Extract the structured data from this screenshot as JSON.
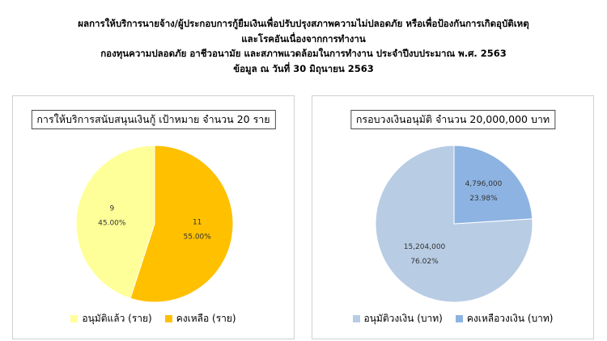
{
  "header": {
    "line1": "ผลการให้บริการนายจ้าง/ผู้ประกอบการกู้ยืมเงินเพื่อปรับปรุงสภาพความไม่ปลอดภัย หรือเพื่อป้องกันการเกิดอุบัติเหตุ",
    "line2": "และโรคอันเนื่องจากการทำงาน",
    "line3": "กองทุนความปลอดภัย อาชีวอนามัย และสภาพแวดล้อมในการทำงาน ประจำปีงบประมาณ พ.ศ. 2563",
    "line4": "ข้อมูล ณ วันที่ 30 มิถุนายน 2563"
  },
  "chart_data": [
    {
      "type": "pie",
      "title": "การให้บริการสนับสนุนเงินกู้ เป้าหมาย จำนวน 20 ราย",
      "slices": [
        {
          "name": "อนุมัติแล้ว (ราย)",
          "value": 9,
          "value_label": "9",
          "percent_label": "45.00%",
          "color": "#FFFF99"
        },
        {
          "name": "คงเหลือ (ราย)",
          "value": 11,
          "value_label": "11",
          "percent_label": "55.00%",
          "color": "#FFC000"
        }
      ]
    },
    {
      "type": "pie",
      "title": "กรอบวงเงินอนุมัติ จำนวน 20,000,000 บาท",
      "slices": [
        {
          "name": "อนุมัติวงเงิน (บาท)",
          "value": 15204000,
          "value_label": "15,204,000",
          "percent_label": "76.02%",
          "color": "#B8CCE4"
        },
        {
          "name": "คงเหลือวงเงิน (บาท)",
          "value": 4796000,
          "value_label": "4,796,000",
          "percent_label": "23.98%",
          "color": "#8DB3E2"
        }
      ]
    }
  ]
}
